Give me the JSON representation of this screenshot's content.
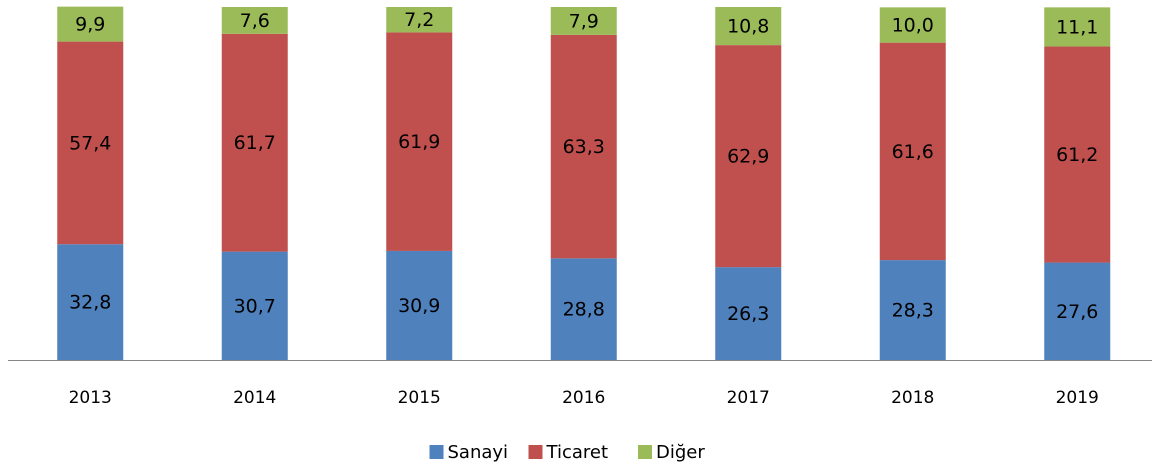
{
  "chart_data": {
    "type": "stacked_bar",
    "categories": [
      "2013",
      "2014",
      "2015",
      "2016",
      "2017",
      "2018",
      "2019"
    ],
    "series": [
      {
        "name": "Sanayi",
        "color": "#4f81bd",
        "values": [
          32.8,
          30.7,
          30.9,
          28.8,
          26.3,
          28.3,
          27.6
        ],
        "value_labels": [
          "32,8",
          "30,7",
          "30,9",
          "28,8",
          "26,3",
          "28,3",
          "27,6"
        ]
      },
      {
        "name": "Ticaret",
        "color": "#c0504d",
        "values": [
          57.4,
          61.7,
          61.9,
          63.3,
          62.9,
          61.6,
          61.2
        ],
        "value_labels": [
          "57,4",
          "61,7",
          "61,9",
          "63,3",
          "62,9",
          "61,6",
          "61,2"
        ]
      },
      {
        "name": "Diğer",
        "color": "#9bbb59",
        "values": [
          9.9,
          7.6,
          7.2,
          7.9,
          10.8,
          10.0,
          11.1
        ],
        "value_labels": [
          "9,9",
          "7,6",
          "7,2",
          "7,9",
          "10,8",
          "10,0",
          "11,1"
        ]
      }
    ],
    "ylim": [
      0,
      100
    ],
    "legend": "bottom"
  }
}
